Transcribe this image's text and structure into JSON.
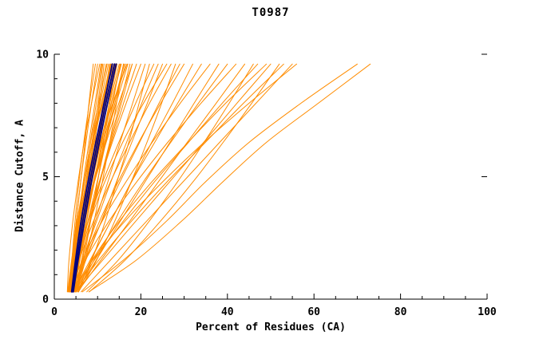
{
  "chart_data": {
    "type": "line",
    "title": "T0987",
    "xlabel": "Percent of Residues (CA)",
    "ylabel": "Distance Cutoff, A",
    "xlim": [
      0,
      100
    ],
    "ylim": [
      0,
      10
    ],
    "x_major_ticks": [
      0,
      20,
      40,
      60,
      80,
      100
    ],
    "x_minor_step": 5,
    "y_major_ticks": [
      0,
      5,
      10
    ],
    "y_minor_step": 1,
    "grid": false,
    "legend_position": "none",
    "axis_color": "#000000",
    "background_color": "#ffffff",
    "y_levels": [
      0.3,
      1.6,
      3.2,
      4.8,
      6.4,
      8.0,
      9.6
    ],
    "series": [
      {
        "name": "model-curves",
        "color": "#ff8c00",
        "stroke_width": 1,
        "curves_x": [
          [
            3.4,
            4.2,
            5.1,
            6.1,
            7.1,
            8.0,
            9.0
          ],
          [
            3.6,
            4.1,
            5.1,
            6.1,
            7.3,
            8.6,
            10.0
          ],
          [
            3.2,
            4.3,
            5.7,
            7.0,
            8.3,
            9.7,
            11.0
          ],
          [
            4.5,
            5.8,
            7.1,
            8.3,
            9.4,
            10.5,
            11.5
          ],
          [
            4.0,
            4.9,
            6.1,
            7.5,
            9.0,
            10.4,
            12.0
          ],
          [
            3.4,
            4.2,
            5.5,
            7.0,
            8.7,
            10.6,
            12.5
          ],
          [
            4.5,
            5.7,
            7.1,
            8.6,
            10.1,
            11.5,
            13.0
          ],
          [
            3.8,
            4.9,
            6.4,
            8.1,
            9.8,
            11.6,
            13.5
          ],
          [
            3.2,
            4.2,
            5.7,
            7.5,
            9.5,
            11.7,
            14.0
          ],
          [
            5.1,
            6.8,
            8.4,
            10.0,
            11.4,
            12.7,
            14.0
          ],
          [
            4.2,
            5.7,
            7.4,
            9.2,
            11.0,
            12.7,
            14.5
          ],
          [
            3.6,
            4.9,
            6.7,
            8.6,
            10.7,
            12.8,
            15.0
          ],
          [
            4.2,
            5.2,
            6.8,
            8.7,
            10.8,
            13.1,
            15.5
          ],
          [
            4.1,
            5.8,
            7.8,
            9.9,
            11.9,
            14.0,
            16.0
          ],
          [
            5.1,
            7.2,
            9.2,
            11.1,
            12.8,
            14.4,
            16.0
          ],
          [
            3.5,
            4.9,
            7.0,
            9.2,
            11.6,
            14.0,
            16.5
          ],
          [
            4.1,
            5.3,
            7.1,
            9.3,
            11.7,
            14.3,
            17.0
          ],
          [
            3.9,
            5.8,
            8.2,
            10.5,
            12.8,
            15.2,
            17.5
          ],
          [
            4.9,
            6.3,
            8.4,
            10.6,
            13.0,
            15.5,
            18.0
          ],
          [
            3.5,
            4.7,
            6.8,
            9.3,
            12.0,
            14.9,
            18.0
          ],
          [
            3.8,
            4.1,
            4.8,
            5.7,
            6.8,
            8.1,
            9.5
          ],
          [
            3.0,
            3.4,
            4.3,
            5.5,
            6.9,
            8.6,
            10.5
          ],
          [
            4.3,
            4.8,
            5.7,
            6.9,
            8.4,
            10.2,
            12.2
          ],
          [
            3.6,
            4.2,
            5.4,
            7.0,
            8.9,
            11.2,
            13.8
          ],
          [
            5.1,
            6.5,
            8.3,
            10.0,
            11.7,
            13.5,
            15.2
          ],
          [
            4.0,
            4.6,
            6.1,
            8.2,
            10.6,
            13.5,
            16.8
          ],
          [
            3.3,
            4.5,
            5.9,
            7.3,
            8.7,
            10.1,
            11.2
          ],
          [
            3.7,
            4.6,
            5.6,
            6.7,
            8.0,
            9.4,
            10.8
          ],
          [
            4.0,
            5.1,
            6.6,
            8.1,
            9.7,
            11.3,
            12.8
          ],
          [
            3.5,
            4.4,
            5.8,
            7.4,
            9.2,
            11.0,
            13.2
          ],
          [
            4.3,
            5.4,
            6.8,
            8.4,
            10.2,
            12.0,
            14.1
          ],
          [
            3.1,
            4.0,
            5.3,
            6.9,
            8.8,
            10.9,
            13.0
          ],
          [
            4.6,
            5.9,
            7.5,
            9.3,
            11.2,
            13.2,
            15.3
          ],
          [
            3.8,
            5.0,
            6.9,
            9.0,
            11.3,
            13.7,
            16.2
          ],
          [
            3.7,
            5.4,
            7.8,
            10.4,
            13.2,
            16.0,
            19.0
          ],
          [
            4.2,
            5.6,
            7.8,
            10.5,
            13.4,
            16.6,
            20.0
          ],
          [
            4.2,
            6.6,
            9.5,
            12.4,
            15.2,
            18.1,
            21.0
          ],
          [
            5.6,
            8.7,
            11.8,
            14.5,
            17.2,
            19.6,
            22.0
          ],
          [
            3.4,
            5.1,
            7.9,
            11.2,
            14.9,
            18.8,
            23.0
          ],
          [
            4.6,
            6.7,
            9.8,
            13.1,
            16.7,
            20.2,
            24.0
          ],
          [
            4.5,
            7.3,
            10.9,
            14.4,
            17.9,
            21.5,
            25.0
          ],
          [
            4.7,
            5.8,
            8.3,
            11.7,
            15.8,
            20.6,
            26.0
          ],
          [
            3.8,
            5.8,
            9.1,
            13.0,
            17.4,
            22.0,
            27.0
          ],
          [
            5.6,
            9.8,
            14.0,
            17.8,
            21.4,
            24.8,
            28.0
          ],
          [
            4.4,
            7.1,
            11.0,
            15.2,
            19.7,
            24.2,
            29.0
          ],
          [
            4.7,
            6.9,
            10.5,
            14.8,
            19.5,
            24.6,
            30.0
          ],
          [
            4.5,
            8.3,
            13.1,
            17.8,
            22.5,
            27.3,
            32.0
          ],
          [
            5.4,
            8.5,
            13.1,
            17.9,
            23.2,
            28.5,
            34.0
          ],
          [
            3.7,
            6.5,
            11.1,
            16.6,
            22.6,
            29.1,
            36.0
          ],
          [
            5.1,
            9.7,
            15.3,
            21.0,
            26.7,
            32.3,
            38.0
          ],
          [
            5.4,
            9.2,
            14.7,
            20.6,
            26.9,
            33.3,
            40.0
          ],
          [
            3.9,
            7.2,
            12.7,
            19.1,
            26.2,
            33.9,
            42.0
          ],
          [
            5.4,
            10.8,
            17.5,
            24.1,
            30.7,
            37.4,
            44.0
          ],
          [
            7.5,
            14.8,
            22.0,
            28.5,
            34.6,
            40.4,
            46.0
          ],
          [
            4.6,
            9.3,
            16.0,
            23.2,
            31.0,
            38.8,
            47.0
          ],
          [
            5.0,
            8.8,
            15.1,
            22.6,
            30.9,
            39.6,
            49.0
          ],
          [
            4.9,
            11.2,
            18.9,
            26.7,
            34.5,
            42.2,
            50.0
          ],
          [
            8.1,
            16.4,
            24.6,
            32.1,
            39.0,
            45.6,
            52.0
          ],
          [
            4.9,
            10.3,
            17.9,
            26.1,
            34.9,
            43.7,
            53.0
          ],
          [
            6.2,
            13.0,
            21.4,
            29.8,
            38.2,
            46.6,
            55.0
          ],
          [
            4.5,
            8.9,
            16.4,
            25.1,
            34.6,
            45.0,
            56.0
          ],
          [
            6.5,
            16.0,
            26.0,
            35.0,
            45.0,
            57.0,
            70.0
          ],
          [
            8.0,
            19.0,
            29.5,
            39.0,
            49.0,
            61.0,
            73.0
          ]
        ]
      },
      {
        "name": "highlighted-curves",
        "color": "#000080",
        "stroke_width": 1.8,
        "curves_x": [
          [
            4.0,
            4.9,
            6.2,
            7.8,
            9.6,
            11.5,
            13.4
          ],
          [
            4.2,
            5.2,
            6.6,
            8.2,
            10.0,
            11.9,
            13.9
          ],
          [
            4.4,
            5.5,
            7.0,
            8.6,
            10.4,
            12.3,
            14.3
          ]
        ]
      }
    ]
  }
}
